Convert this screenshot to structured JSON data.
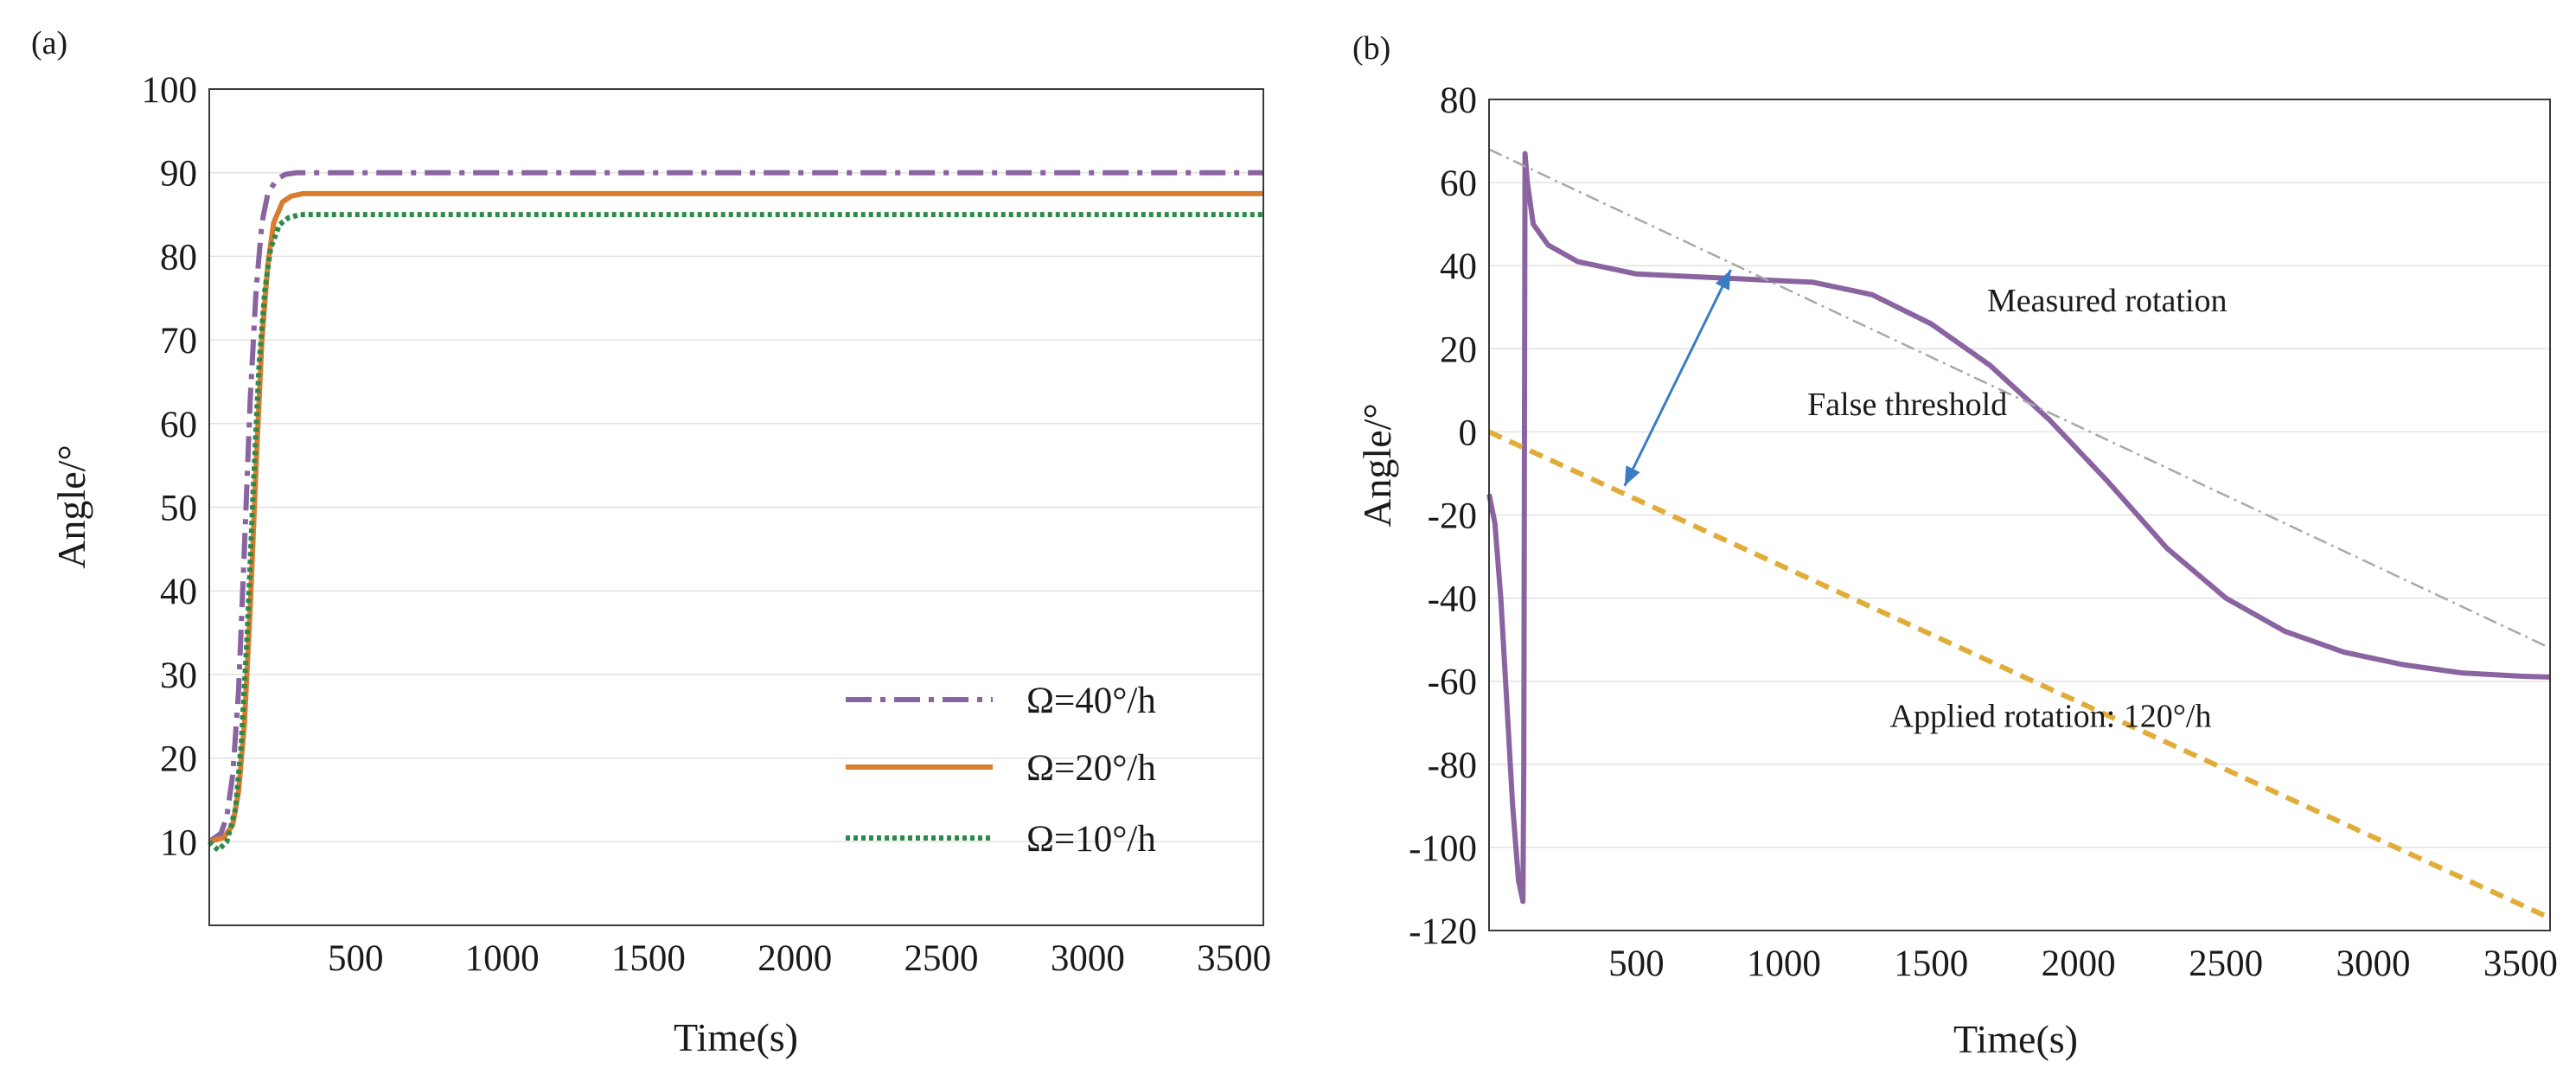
{
  "chart_data": [
    {
      "type": "line",
      "panel_label": "(a)",
      "title": "",
      "xlabel": "Time(s)",
      "ylabel": "Angle/°",
      "xlim": [
        0,
        3600
      ],
      "ylim": [
        0,
        100
      ],
      "xticks": [
        500,
        1000,
        1500,
        2000,
        2500,
        3000,
        3500
      ],
      "xtick_labels": [
        "500",
        "1000",
        "1500",
        "2000",
        "2500",
        "3000",
        "3500"
      ],
      "yticks": [
        10,
        20,
        30,
        40,
        50,
        60,
        70,
        80,
        90,
        100
      ],
      "ytick_labels": [
        "10",
        "20",
        "30",
        "40",
        "50",
        "60",
        "70",
        "80",
        "90",
        "100"
      ],
      "grid": "horizontal",
      "legend_position": "bottom-right",
      "series": [
        {
          "name": "Ω=40°/h",
          "color": "#8a64a0",
          "style": "dash-dot",
          "x": [
            0,
            40,
            60,
            80,
            100,
            120,
            140,
            160,
            180,
            200,
            230,
            260,
            300,
            350,
            400,
            3600
          ],
          "y": [
            10,
            11,
            13,
            18,
            28,
            45,
            63,
            76,
            84,
            87.5,
            89.2,
            89.8,
            90,
            90,
            90,
            90
          ]
        },
        {
          "name": "Ω=20°/h",
          "color": "#d97e2e",
          "style": "solid",
          "x": [
            0,
            50,
            80,
            100,
            120,
            140,
            160,
            180,
            200,
            220,
            250,
            280,
            320,
            380,
            450,
            3600
          ],
          "y": [
            10,
            10.5,
            12,
            16,
            24,
            38,
            55,
            70,
            79,
            84,
            86.5,
            87.2,
            87.5,
            87.5,
            87.5,
            87.5
          ]
        },
        {
          "name": "Ω=10°/h",
          "color": "#2e8a4a",
          "style": "dotted",
          "x": [
            0,
            30,
            60,
            90,
            110,
            130,
            150,
            170,
            190,
            210,
            240,
            270,
            310,
            360,
            450,
            3600
          ],
          "y": [
            10,
            9,
            10,
            14,
            22,
            35,
            52,
            67,
            76,
            81,
            83.8,
            84.6,
            85,
            85,
            85,
            85
          ]
        }
      ]
    },
    {
      "type": "line",
      "panel_label": "(b)",
      "title": "",
      "xlabel": "Time(s)",
      "ylabel": "Angle/°",
      "xlim": [
        0,
        3600
      ],
      "ylim": [
        -120,
        80
      ],
      "xticks": [
        500,
        1000,
        1500,
        2000,
        2500,
        3000,
        3500
      ],
      "xtick_labels": [
        "500",
        "1000",
        "1500",
        "2000",
        "2500",
        "3000",
        "3500"
      ],
      "yticks": [
        -120,
        -100,
        -80,
        -60,
        -40,
        -20,
        0,
        20,
        40,
        60,
        80
      ],
      "ytick_labels": [
        "-120",
        "-100",
        "-80",
        "-60",
        "-40",
        "-20",
        "0",
        "20",
        "40",
        "60",
        "80"
      ],
      "grid": "horizontal",
      "series": [
        {
          "name": "Measured rotation",
          "color": "#8a64a0",
          "style": "solid",
          "x": [
            0,
            20,
            40,
            60,
            80,
            100,
            115,
            118,
            122,
            130,
            150,
            200,
            300,
            500,
            800,
            1100,
            1300,
            1500,
            1700,
            1900,
            2100,
            2300,
            2500,
            2700,
            2900,
            3100,
            3300,
            3500,
            3600
          ],
          "y": [
            -15,
            -22,
            -40,
            -65,
            -90,
            -108,
            -113,
            -80,
            67,
            60,
            50,
            45,
            41,
            38,
            37,
            36,
            33,
            26,
            16,
            3,
            -12,
            -28,
            -40,
            -48,
            -53,
            -56,
            -58,
            -58.8,
            -59
          ]
        },
        {
          "name": "Applied rotation: 120°/h",
          "color": "#e0ad3a",
          "style": "dashed",
          "x": [
            0,
            3600
          ],
          "y": [
            0,
            -117
          ]
        },
        {
          "name": "trend",
          "color": "#a8a8a8",
          "style": "dash-dot",
          "x": [
            0,
            3600
          ],
          "y": [
            68,
            -52
          ]
        }
      ],
      "annotations": [
        {
          "text": "Measured rotation",
          "x": 1690,
          "y": 29
        },
        {
          "text": "False threshold",
          "x": 1080,
          "y": 4
        },
        {
          "text": "Applied rotation: 120°/h",
          "x": 1360,
          "y": -71
        }
      ],
      "arrow": {
        "from": [
          460,
          -13
        ],
        "to": [
          820,
          39
        ],
        "color": "#3b7dc4",
        "label": "False threshold"
      }
    }
  ]
}
